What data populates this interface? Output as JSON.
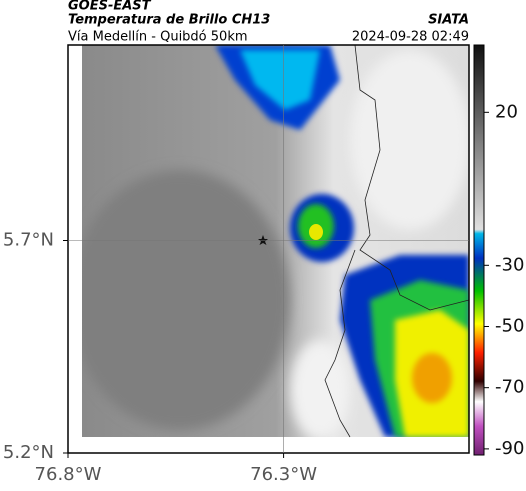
{
  "header": {
    "source": "GOES-EAST",
    "title": "Temperatura de Brillo CH13",
    "subtitle": "Vía Medellín - Quibdó 50km",
    "brand": "SIATA",
    "timestamp": "2024-09-28 02:49"
  },
  "map": {
    "xlim": [
      -76.8,
      -75.87
    ],
    "ylim": [
      5.2,
      6.16
    ],
    "xticks": [
      {
        "value": -76.8,
        "label": "76.8°W"
      },
      {
        "value": -76.3,
        "label": "76.3°W"
      }
    ],
    "yticks": [
      {
        "value": 5.2,
        "label": "5.2°N"
      },
      {
        "value": 5.7,
        "label": "5.7°N"
      }
    ]
  },
  "colorbar": {
    "lim": [
      -92,
      42
    ],
    "ticks": [
      20,
      -30,
      -50,
      -70,
      -90
    ]
  }
}
